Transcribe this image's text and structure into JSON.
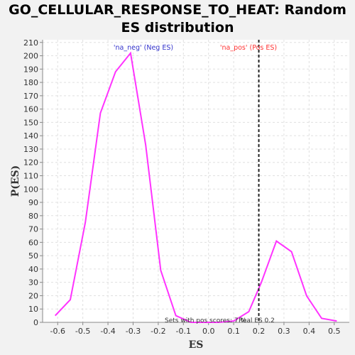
{
  "chart_data": {
    "type": "line",
    "title_line1": "GO_CELLULAR_RESPONSE_TO_HEAT: Random",
    "title_line2": "ES distribution",
    "xlabel": "ES",
    "ylabel": "P(ES)",
    "xlim": [
      -0.66,
      0.56
    ],
    "ylim": [
      0,
      212
    ],
    "x_ticks": [
      -0.6,
      -0.5,
      -0.4,
      -0.3,
      -0.2,
      -0.1,
      0.0,
      0.1,
      0.2,
      0.3,
      0.4,
      0.5
    ],
    "y_ticks": [
      0,
      10,
      20,
      30,
      40,
      50,
      60,
      70,
      80,
      90,
      100,
      110,
      120,
      130,
      140,
      150,
      160,
      170,
      180,
      190,
      200,
      210
    ],
    "grid": true,
    "line_color": "#ff33ff",
    "legend": {
      "neg_label": "'na_neg' (Neg ES)",
      "neg_color": "#3333cc",
      "pos_label": "'na_pos' (Pos ES)",
      "pos_color": "#ff3333"
    },
    "real_es": 0.2,
    "real_es_label": "Real ES 0.2",
    "sets_label": "Sets with pos scores: 7 %",
    "series": [
      {
        "x": [
          -0.61,
          -0.55,
          -0.49,
          -0.43,
          -0.37,
          -0.31,
          -0.25,
          -0.19,
          -0.13,
          -0.07,
          -0.01,
          0.04,
          0.1,
          0.16,
          0.21,
          0.27,
          0.33,
          0.39,
          0.45,
          0.51
        ],
        "y": [
          5,
          17,
          75,
          157,
          188,
          202,
          133,
          39,
          5,
          0,
          0,
          0,
          1,
          8,
          30,
          61,
          53,
          20,
          3,
          1
        ]
      }
    ]
  }
}
